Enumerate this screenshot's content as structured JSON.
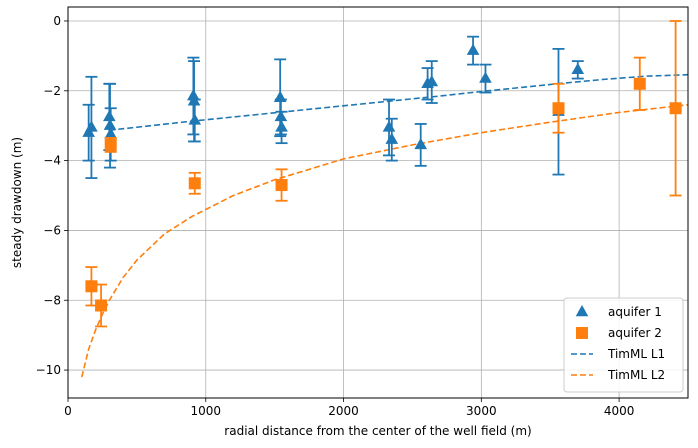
{
  "chart_data": {
    "type": "scatter",
    "xlabel": "radial distance from the center of the well field (m)",
    "ylabel": "steady drawdown (m)",
    "xlim": [
      0,
      4500
    ],
    "ylim": [
      -10.8,
      0.4
    ],
    "xticks": [
      0,
      1000,
      2000,
      3000,
      4000
    ],
    "yticks": [
      0,
      -2,
      -4,
      -6,
      -8,
      -10
    ],
    "xtick_labels": [
      "0",
      "1000",
      "2000",
      "3000",
      "4000"
    ],
    "ytick_labels": [
      "0",
      "−2",
      "−4",
      "−6",
      "−8",
      "−10"
    ],
    "grid": true,
    "legend_position": "lower-right",
    "series": [
      {
        "name": "aquifer 1",
        "kind": "scatter",
        "marker": "triangle",
        "color": "#1f77b4",
        "points": [
          {
            "x": 150,
            "y": -3.2,
            "err": 0.8
          },
          {
            "x": 170,
            "y": -3.05,
            "err": 1.45
          },
          {
            "x": 300,
            "y": -2.75,
            "err": 0.95
          },
          {
            "x": 305,
            "y": -3.0,
            "err": 1.2
          },
          {
            "x": 310,
            "y": -3.25,
            "err": 0.75
          },
          {
            "x": 910,
            "y": -2.15,
            "err": 1.1
          },
          {
            "x": 915,
            "y": -2.3,
            "err": 1.15
          },
          {
            "x": 920,
            "y": -2.85,
            "err": 0.6
          },
          {
            "x": 1540,
            "y": -2.2,
            "err": 1.1
          },
          {
            "x": 1545,
            "y": -2.75,
            "err": 0.5
          },
          {
            "x": 1550,
            "y": -3.05,
            "err": 0.45
          },
          {
            "x": 2330,
            "y": -3.05,
            "err": 0.8
          },
          {
            "x": 2350,
            "y": -3.4,
            "err": 0.6
          },
          {
            "x": 2560,
            "y": -3.55,
            "err": 0.6
          },
          {
            "x": 2610,
            "y": -1.8,
            "err": 0.45
          },
          {
            "x": 2640,
            "y": -1.75,
            "err": 0.6
          },
          {
            "x": 2940,
            "y": -0.85,
            "err": 0.4
          },
          {
            "x": 3030,
            "y": -1.65,
            "err": 0.4
          },
          {
            "x": 3560,
            "y": -2.6,
            "err": 1.8
          },
          {
            "x": 3700,
            "y": -1.4,
            "err": 0.25
          }
        ]
      },
      {
        "name": "aquifer 2",
        "kind": "scatter",
        "marker": "square",
        "color": "#ff7f0e",
        "points": [
          {
            "x": 170,
            "y": -7.6,
            "err": 0.55
          },
          {
            "x": 240,
            "y": -8.15,
            "err": 0.6
          },
          {
            "x": 310,
            "y": -3.55,
            "err": 0.2
          },
          {
            "x": 920,
            "y": -4.65,
            "err": 0.3
          },
          {
            "x": 1550,
            "y": -4.7,
            "err": 0.45
          },
          {
            "x": 3560,
            "y": -2.5,
            "err": 0.7
          },
          {
            "x": 4150,
            "y": -1.8,
            "err": 0.75
          },
          {
            "x": 4410,
            "y": -2.5,
            "err": 2.5
          }
        ]
      },
      {
        "name": "TimML L1",
        "kind": "line",
        "dash": true,
        "color": "#1f77b4",
        "x": [
          300,
          600,
          900,
          1200,
          1500,
          1800,
          2100,
          2400,
          2700,
          3000,
          3300,
          3600,
          3900,
          4200,
          4500
        ],
        "y": [
          -3.13,
          -3.0,
          -2.87,
          -2.75,
          -2.63,
          -2.51,
          -2.39,
          -2.27,
          -2.15,
          -2.02,
          -1.9,
          -1.78,
          -1.67,
          -1.58,
          -1.54
        ]
      },
      {
        "name": "TimML L2",
        "kind": "line",
        "dash": true,
        "color": "#ff7f0e",
        "x": [
          100,
          150,
          200,
          250,
          300,
          400,
          500,
          700,
          900,
          1200,
          1500,
          2000,
          2500,
          3000,
          3500,
          4000,
          4500
        ],
        "y": [
          -10.2,
          -9.4,
          -8.85,
          -8.4,
          -8.0,
          -7.35,
          -6.85,
          -6.1,
          -5.6,
          -5.0,
          -4.55,
          -3.95,
          -3.55,
          -3.2,
          -2.9,
          -2.62,
          -2.4
        ]
      }
    ]
  }
}
